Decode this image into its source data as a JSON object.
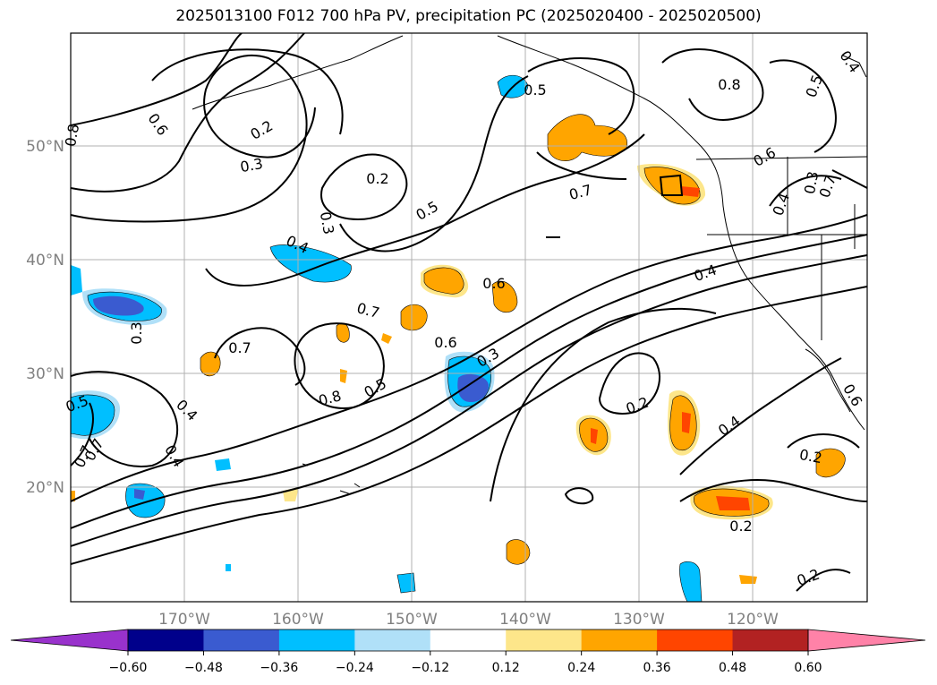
{
  "title": "2025013100 F012 700 hPa PV, precipitation PC (2025020400 - 2025020500)",
  "map": {
    "lat_labels": [
      "50°N",
      "40°N",
      "30°N",
      "20°N"
    ],
    "lon_labels": [
      "170°W",
      "160°W",
      "150°W",
      "140°W",
      "130°W",
      "120°W"
    ],
    "gridlines": true,
    "contour_labels": [
      "0.8",
      "0.6",
      "0.7",
      "0.2",
      "0.3",
      "0.2",
      "0.3",
      "0.4",
      "0.5",
      "0.5",
      "0.8",
      "0.5",
      "0.4",
      "0.3",
      "0.7",
      "0.4",
      "0.6",
      "0.7",
      "0.7",
      "0.6",
      "0.3",
      "0.5",
      "0.8",
      "0.2",
      "0.4",
      "0.3",
      "0.5",
      "0.4",
      "0.7",
      "0.6",
      "0.2",
      "0.2",
      "0.2",
      "0.4",
      "0.6",
      "0.7",
      "0.4"
    ]
  },
  "colorbar": {
    "ticks": [
      "−0.60",
      "−0.48",
      "−0.36",
      "−0.24",
      "−0.12",
      "0.12",
      "0.24",
      "0.36",
      "0.48",
      "0.60"
    ],
    "colors": [
      "#9932cc",
      "#00008b",
      "#3a5bd0",
      "#00bfff",
      "#b0e0f8",
      "#ffffff",
      "#fde68a",
      "#ffa500",
      "#ff4500",
      "#b22222",
      "#ff82a8"
    ],
    "extend": "both"
  },
  "colors": {
    "contour": "#000000",
    "grid": "#b0b0b0",
    "label": "#808080"
  }
}
